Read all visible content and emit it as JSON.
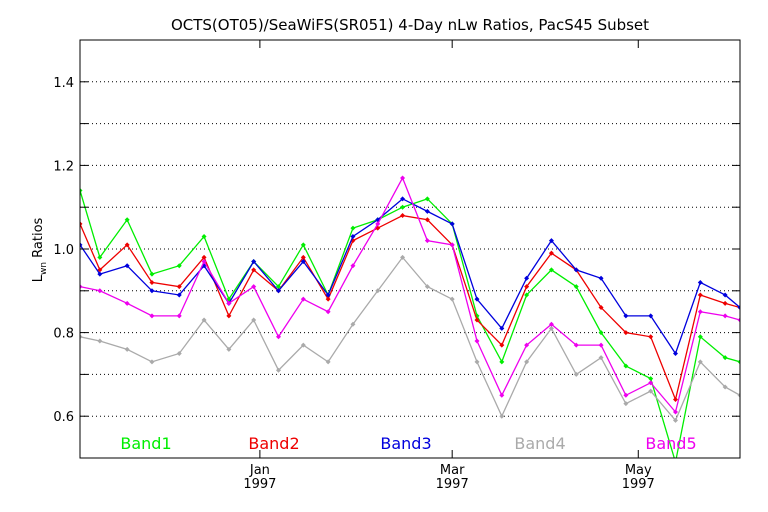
{
  "chart_data": {
    "type": "line",
    "title": "OCTS(OT05)/SeaWiFS(SR051) 4-Day nLw Ratios, PacS45 Subset",
    "xlabel": "",
    "ylabel_main": "L",
    "ylabel_sub": "wn",
    "ylabel_rest": " Ratios",
    "ylim": [
      0.5,
      1.5
    ],
    "y_ticks": [
      {
        "value": 0.6,
        "label": "0.6"
      },
      {
        "value": 0.8,
        "label": "0.8"
      },
      {
        "value": 1.0,
        "label": "1.0"
      },
      {
        "value": 1.2,
        "label": "1.2"
      },
      {
        "value": 1.4,
        "label": "1.4"
      }
    ],
    "y_grid": [
      0.6,
      0.7,
      0.8,
      0.9,
      1.0,
      1.1,
      1.2,
      1.3,
      1.4
    ],
    "xlim": [
      0,
      26.6
    ],
    "x_ticks": [
      {
        "x": 7.25,
        "month": "Jan",
        "year": "1997"
      },
      {
        "x": 15.0,
        "month": "Mar",
        "year": "1997"
      },
      {
        "x": 22.5,
        "month": "May",
        "year": "1997"
      }
    ],
    "x": [
      0,
      0.8,
      1.9,
      2.9,
      4.0,
      5.0,
      6.0,
      7.0,
      8.0,
      9.0,
      10.0,
      11.0,
      12.0,
      13.0,
      14.0,
      15.0,
      16.0,
      17.0,
      18.0,
      19.0,
      20.0,
      21.0,
      22.0,
      23.0,
      24.0,
      25.0,
      26.0,
      26.6
    ],
    "series": [
      {
        "name": "Band1",
        "color": "#00ee00",
        "values": [
          1.14,
          0.98,
          1.07,
          0.94,
          0.96,
          1.03,
          0.88,
          0.97,
          0.91,
          1.01,
          0.89,
          1.05,
          1.07,
          1.1,
          1.12,
          1.06,
          0.84,
          0.73,
          0.89,
          0.95,
          0.91,
          0.8,
          0.72,
          0.69,
          0.49,
          0.79,
          0.74,
          0.73
        ]
      },
      {
        "name": "Band2",
        "color": "#ee0000",
        "values": [
          1.06,
          0.95,
          1.01,
          0.92,
          0.91,
          0.98,
          0.84,
          0.95,
          0.9,
          0.98,
          0.88,
          1.02,
          1.05,
          1.08,
          1.07,
          1.01,
          0.83,
          0.77,
          0.91,
          0.99,
          0.95,
          0.86,
          0.8,
          0.79,
          0.64,
          0.89,
          0.87,
          0.86
        ]
      },
      {
        "name": "Band3",
        "color": "#0000dd",
        "values": [
          1.01,
          0.94,
          0.96,
          0.9,
          0.89,
          0.96,
          0.87,
          0.97,
          0.9,
          0.97,
          0.89,
          1.03,
          1.07,
          1.12,
          1.09,
          1.06,
          0.88,
          0.81,
          0.93,
          1.02,
          0.95,
          0.93,
          0.84,
          0.84,
          0.75,
          0.92,
          0.89,
          0.86
        ]
      },
      {
        "name": "Band4",
        "color": "#aaaaaa",
        "values": [
          0.79,
          0.78,
          0.76,
          0.73,
          0.75,
          0.83,
          0.76,
          0.83,
          0.71,
          0.77,
          0.73,
          0.82,
          0.9,
          0.98,
          0.91,
          0.88,
          0.73,
          0.6,
          0.73,
          0.81,
          0.7,
          0.74,
          0.63,
          0.66,
          0.59,
          0.73,
          0.67,
          0.65
        ]
      },
      {
        "name": "Band5",
        "color": "#ee00ee",
        "values": [
          0.91,
          0.9,
          0.87,
          0.84,
          0.84,
          0.97,
          0.87,
          0.91,
          0.79,
          0.88,
          0.85,
          0.96,
          1.06,
          1.17,
          1.02,
          1.01,
          0.78,
          0.65,
          0.77,
          0.82,
          0.77,
          0.77,
          0.65,
          0.68,
          0.61,
          0.85,
          0.84,
          0.83
        ]
      }
    ],
    "legend_placement": "bottom-inside",
    "grid": true
  }
}
